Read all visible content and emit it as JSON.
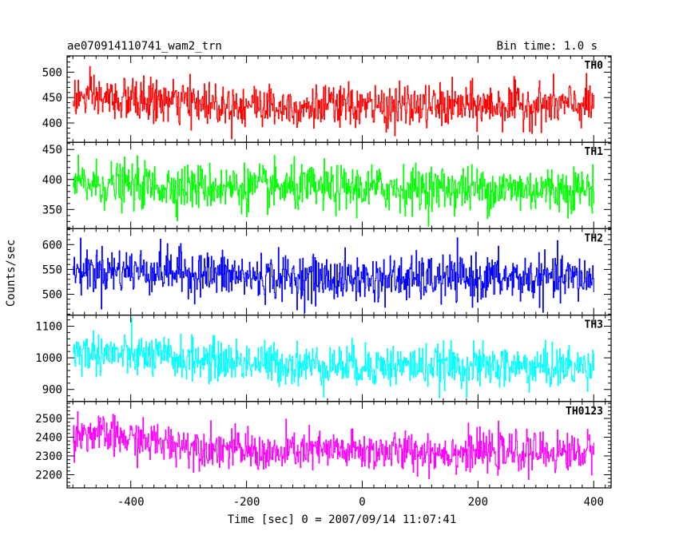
{
  "header": {
    "left": "ae070914110741_wam2_trn",
    "right": "Bin time: 1.0 s"
  },
  "chart_data": {
    "type": "line",
    "xlabel": "Time [sec] 0 = 2007/09/14 11:07:41",
    "ylabel": "Counts/sec",
    "xlim": [
      -510,
      430
    ],
    "x_data_range": [
      -500,
      400
    ],
    "bin_seconds": 1.0,
    "x_ticks": [
      -400,
      -200,
      0,
      200,
      400
    ],
    "panels": [
      {
        "name": "TH0",
        "color": "#ff0000",
        "ylim": [
          362,
          532
        ],
        "y_ticks": [
          400,
          450,
          500
        ],
        "approx_profile": [
          [
            -500,
            450
          ],
          [
            -300,
            440
          ],
          [
            -100,
            432
          ],
          [
            100,
            432
          ],
          [
            300,
            435
          ],
          [
            400,
            435
          ]
        ],
        "noise_sigma": 21
      },
      {
        "name": "TH1",
        "color": "#00ff00",
        "ylim": [
          318,
          462
        ],
        "y_ticks": [
          350,
          400,
          450
        ],
        "approx_profile": [
          [
            -500,
            392
          ],
          [
            -300,
            388
          ],
          [
            -100,
            385
          ],
          [
            100,
            385
          ],
          [
            300,
            384
          ],
          [
            400,
            384
          ]
        ],
        "noise_sigma": 19
      },
      {
        "name": "TH2",
        "color": "#0000ff",
        "ylim": [
          458,
          632
        ],
        "y_ticks": [
          500,
          550,
          600
        ],
        "approx_profile": [
          [
            -500,
            548
          ],
          [
            -350,
            548
          ],
          [
            -200,
            535
          ],
          [
            0,
            530
          ],
          [
            200,
            532
          ],
          [
            400,
            532
          ]
        ],
        "noise_sigma": 23
      },
      {
        "name": "TH3",
        "color": "#00ffff",
        "ylim": [
          862,
          1135
        ],
        "y_ticks": [
          900,
          1000,
          1100
        ],
        "approx_profile": [
          [
            -500,
            1020
          ],
          [
            -300,
            995
          ],
          [
            -100,
            978
          ],
          [
            100,
            975
          ],
          [
            300,
            970
          ],
          [
            400,
            972
          ]
        ],
        "noise_sigma": 33
      },
      {
        "name": "TH0123",
        "color": "#ff00ff",
        "ylim": [
          2130,
          2590
        ],
        "y_ticks": [
          2200,
          2300,
          2400,
          2500
        ],
        "approx_profile": [
          [
            -500,
            2430
          ],
          [
            -350,
            2370
          ],
          [
            -200,
            2330
          ],
          [
            -140,
            2300
          ],
          [
            -130,
            2330
          ],
          [
            0,
            2325
          ],
          [
            200,
            2320
          ],
          [
            400,
            2320
          ]
        ],
        "noise_sigma": 52
      }
    ]
  }
}
